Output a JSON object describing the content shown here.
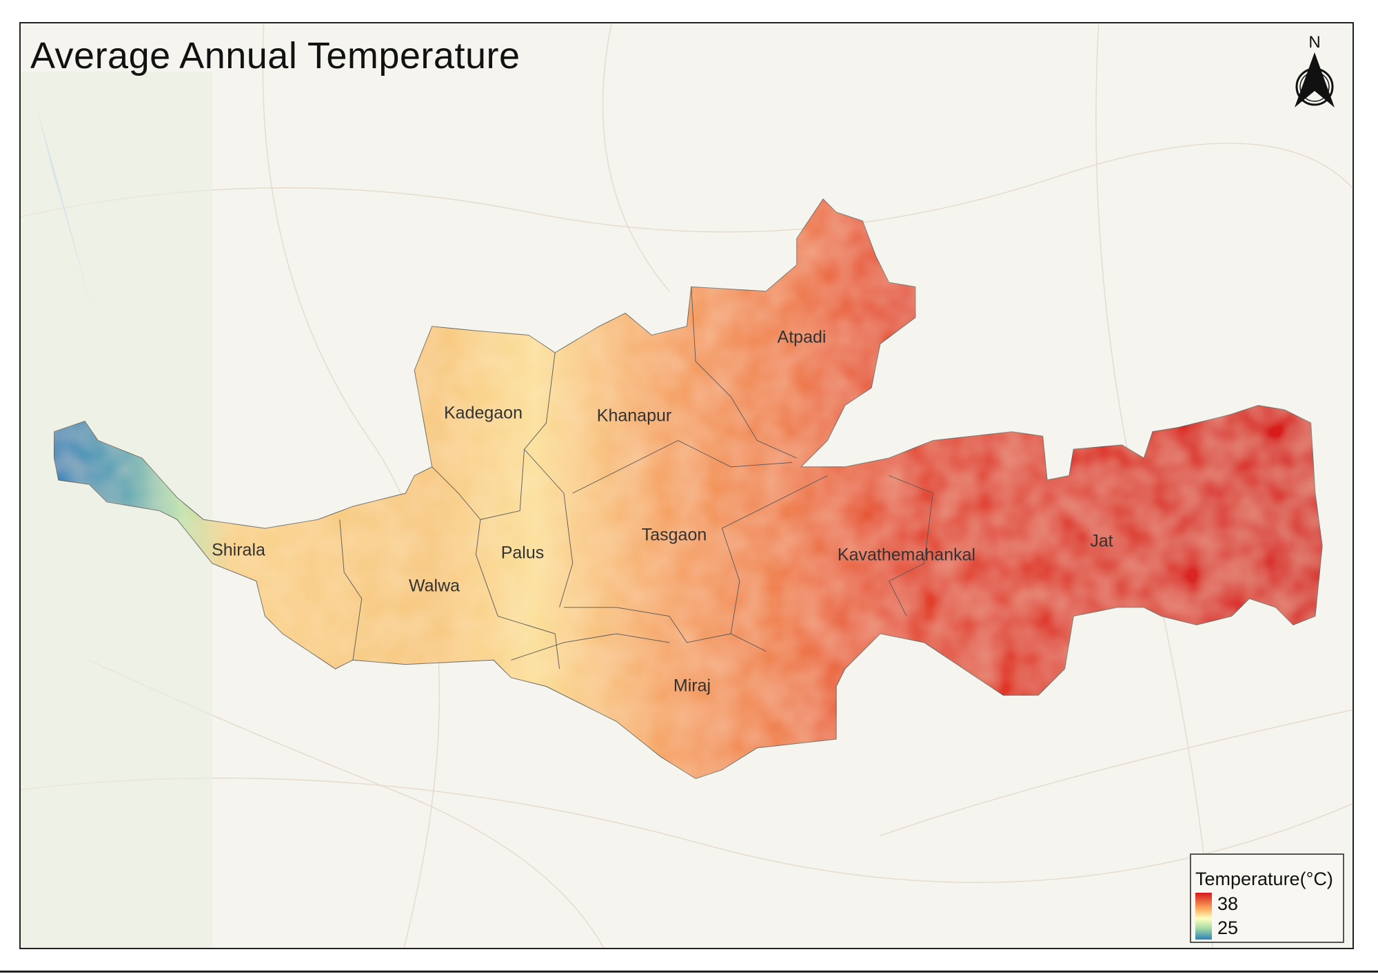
{
  "title": "Average Annual Temperature",
  "north_arrow": {
    "label": "N"
  },
  "legend": {
    "title": "Temperature(°C)",
    "max": "38",
    "min": "25",
    "colors": [
      "#d7191c",
      "#fdae61",
      "#ffffbf",
      "#abdda4",
      "#2b83ba"
    ]
  },
  "districts": [
    {
      "name": "Atpadi"
    },
    {
      "name": "Kadegaon"
    },
    {
      "name": "Khanapur"
    },
    {
      "name": "Shirala"
    },
    {
      "name": "Palus"
    },
    {
      "name": "Tasgaon"
    },
    {
      "name": "Walwa"
    },
    {
      "name": "Kavathemahankal"
    },
    {
      "name": "Jat"
    },
    {
      "name": "Miraj"
    }
  ]
}
